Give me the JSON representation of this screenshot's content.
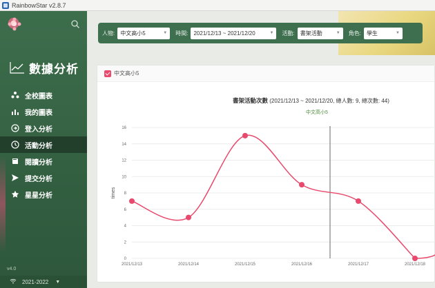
{
  "window": {
    "title": "RainbowStar v2.8.7"
  },
  "sidebar": {
    "brand": "數據分析",
    "items": [
      {
        "icon": "school-chart-icon",
        "label": "全校圖表"
      },
      {
        "icon": "bar-chart-icon",
        "label": "我的圖表"
      },
      {
        "icon": "login-icon",
        "label": "登入分析"
      },
      {
        "icon": "clock-icon",
        "label": "活動分析",
        "active": true
      },
      {
        "icon": "book-icon",
        "label": "閱讀分析"
      },
      {
        "icon": "send-icon",
        "label": "提交分析"
      },
      {
        "icon": "star-icon",
        "label": "星星分析"
      }
    ],
    "version": "v4.0",
    "year_selector": "2021-2022"
  },
  "filters": {
    "person_label": "人物:",
    "person_value": "中文高小5",
    "time_label": "時間:",
    "time_value": "2021/12/13 ~ 2021/12/20",
    "activity_label": "活動:",
    "activity_value": "書架活動",
    "role_label": "角色:",
    "role_value": "學生"
  },
  "card": {
    "title": "中文高小5"
  },
  "chart_data": {
    "type": "line",
    "title": "書架活動次數",
    "title_detail": "(2021/12/13 ~ 2021/12/20, 總人數: 9, 總次數: 44)",
    "subtitle": "中文高小5",
    "ylabel": "times",
    "xlabel": "",
    "ylim": [
      0,
      16
    ],
    "yticks": [
      0,
      2,
      4,
      6,
      8,
      10,
      12,
      14,
      16
    ],
    "categories": [
      "2021/12/13",
      "2021/12/14",
      "2021/12/15",
      "2021/12/16",
      "2021/12/17",
      "2021/12/18"
    ],
    "series": [
      {
        "name": "",
        "values": [
          7,
          5,
          15,
          9,
          7,
          0
        ],
        "color": "#e8496c"
      }
    ],
    "grid": true
  },
  "colors": {
    "sidebar": "#3d6e4c",
    "accent": "#e8496c",
    "filterbar": "#3e6f4e"
  }
}
